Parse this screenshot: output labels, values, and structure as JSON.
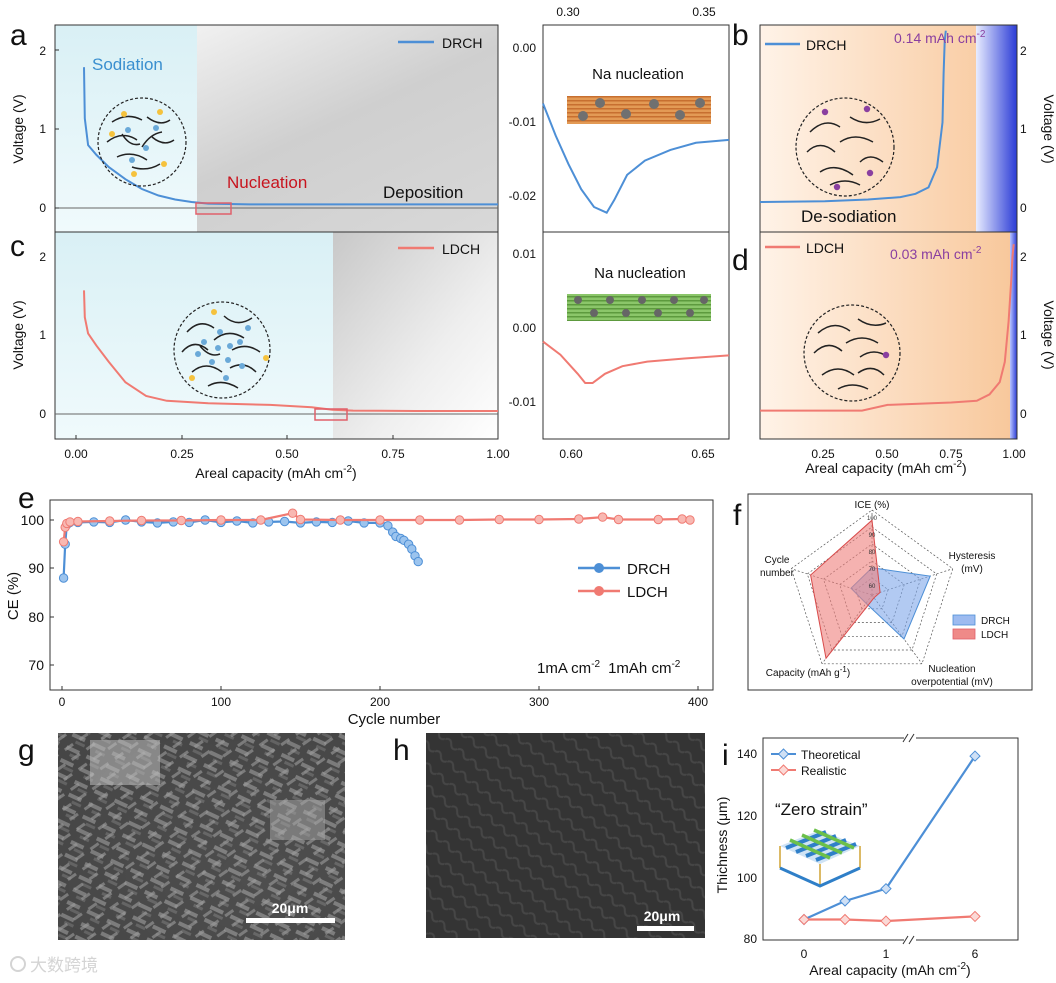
{
  "panels": {
    "a": {
      "letter": "a",
      "legend": "DRCH",
      "ylabel": "Voltage (V)",
      "yticks": [
        "0",
        "1",
        "2"
      ],
      "labels": {
        "sodiation": "Sodiation",
        "nucleation": "Nucleation",
        "deposition": "Deposition"
      }
    },
    "a_inset": {
      "top_ticks": [
        "0.30",
        "0.35"
      ],
      "yticks": [
        "0.00",
        "-0.01",
        "-0.02"
      ],
      "label": "Na nucleation"
    },
    "b": {
      "letter": "b",
      "legend": "DRCH",
      "capacity": "0.14 mAh cm",
      "capacity_sup": "-2",
      "ylabel": "Voltage (V)",
      "yticks": [
        "0",
        "1",
        "2"
      ],
      "label": "De-sodiation"
    },
    "c": {
      "letter": "c",
      "legend": "LDCH",
      "ylabel": "Voltage (V)",
      "yticks": [
        "0",
        "1",
        "2"
      ],
      "xticks": [
        "0.00",
        "0.25",
        "0.50",
        "0.75",
        "1.00"
      ],
      "xlabel": "Areal capacity (mAh cm",
      "xlabel_sup": "-2",
      "xlabel_end": ")"
    },
    "c_inset": {
      "xticks": [
        "0.60",
        "0.65"
      ],
      "yticks": [
        "0.01",
        "0.00",
        "-0.01"
      ],
      "label": "Na nucleation"
    },
    "d": {
      "letter": "d",
      "legend": "LDCH",
      "capacity": "0.03 mAh cm",
      "capacity_sup": "-2",
      "ylabel": "Voltage (V)",
      "yticks": [
        "0",
        "1",
        "2"
      ],
      "xticks": [
        "0.25",
        "0.50",
        "0.75",
        "1.00"
      ],
      "xlabel": "Areal capacity (mAh cm",
      "xlabel_sup": "-2",
      "xlabel_end": ")"
    },
    "e": {
      "letter": "e",
      "ylabel": "CE (%)",
      "yticks": [
        "70",
        "80",
        "90",
        "100"
      ],
      "xticks": [
        "0",
        "100",
        "200",
        "300",
        "400"
      ],
      "xlabel": "Cycle number",
      "legend": [
        "DRCH",
        "LDCH"
      ],
      "condition_1": "1mA cm",
      "condition_1_sup": "-2",
      "condition_2": "1mAh cm",
      "condition_2_sup": "-2"
    },
    "f": {
      "letter": "f",
      "axes": {
        "ice": "ICE (%)",
        "hysteresis_1": "Hysteresis",
        "hysteresis_2": "(mV)",
        "nucleation_1": "Nucleation",
        "nucleation_2": "overpotential (mV)",
        "capacity": "Capacity (mAh g",
        "capacity_sup": "-1",
        "capacity_end": ")",
        "cycle_1": "Cycle",
        "cycle_2": "number"
      },
      "ring_labels": [
        "100",
        "90",
        "80",
        "70",
        "60"
      ],
      "legend": [
        "DRCH",
        "LDCH"
      ]
    },
    "g": {
      "letter": "g",
      "scalebar": "20μm"
    },
    "h": {
      "letter": "h",
      "scalebar": "20μm"
    },
    "i": {
      "letter": "i",
      "legend": [
        "Theoretical",
        "Realistic"
      ],
      "ylabel": "Thichness (μm)",
      "yticks": [
        "80",
        "100",
        "120",
        "140"
      ],
      "xticks": [
        "0",
        "1",
        "6"
      ],
      "xlabel": "Areal capacity (mAh cm",
      "xlabel_sup": "-2",
      "xlabel_end": ")",
      "annotation": "“Zero strain”"
    }
  },
  "watermark": "大数跨境",
  "colors": {
    "drch": "#4d8fd6",
    "ldch": "#f07a72",
    "annotation_red": "#c8141e",
    "capacity_purple": "#8a3fa0",
    "sodiation_blue": "#3a8fcf"
  },
  "chart_data": [
    {
      "panel": "a",
      "type": "line",
      "series_name": "DRCH",
      "xlim": [
        -0.07,
        1.0
      ],
      "ylim": [
        -0.35,
        2.2
      ],
      "x": [
        0.0,
        0.002,
        0.01,
        0.03,
        0.06,
        0.1,
        0.14,
        0.18,
        0.22,
        0.26,
        0.3,
        0.4,
        0.6,
        0.8,
        1.0
      ],
      "y": [
        1.68,
        1.05,
        0.72,
        0.6,
        0.45,
        0.3,
        0.18,
        0.1,
        0.05,
        0.02,
        0.0,
        -0.01,
        -0.01,
        -0.01,
        -0.01
      ]
    },
    {
      "panel": "a_inset",
      "type": "line",
      "series_name": "DRCH",
      "xlim": [
        0.285,
        0.358
      ],
      "ylim": [
        -0.0255,
        0.0035
      ],
      "x": [
        0.285,
        0.29,
        0.295,
        0.3,
        0.305,
        0.31,
        0.313,
        0.318,
        0.325,
        0.335,
        0.345,
        0.358
      ],
      "y": [
        -0.0075,
        -0.012,
        -0.016,
        -0.0195,
        -0.022,
        -0.0228,
        -0.021,
        -0.0175,
        -0.0155,
        -0.014,
        -0.013,
        -0.0126
      ]
    },
    {
      "panel": "b",
      "type": "line",
      "series_name": "DRCH",
      "xlim": [
        0.0,
        1.0
      ],
      "ylim": [
        -0.35,
        2.2
      ],
      "x": [
        0.0,
        0.3,
        0.5,
        0.65,
        0.72,
        0.78,
        0.82,
        0.845,
        0.85,
        0.855,
        0.86
      ],
      "y": [
        0.02,
        0.03,
        0.05,
        0.08,
        0.12,
        0.2,
        0.45,
        1.0,
        1.6,
        2.0,
        2.13
      ]
    },
    {
      "panel": "c",
      "type": "line",
      "series_name": "LDCH",
      "xlim": [
        -0.07,
        1.0
      ],
      "ylim": [
        -0.35,
        2.2
      ],
      "x": [
        0.0,
        0.002,
        0.01,
        0.03,
        0.06,
        0.1,
        0.15,
        0.2,
        0.3,
        0.45,
        0.55,
        0.6,
        0.65,
        0.8,
        1.0
      ],
      "y": [
        1.48,
        1.15,
        0.95,
        0.8,
        0.6,
        0.35,
        0.18,
        0.12,
        0.09,
        0.07,
        0.04,
        0.01,
        0.0,
        -0.005,
        -0.005
      ]
    },
    {
      "panel": "c_inset",
      "type": "line",
      "series_name": "LDCH",
      "xlim": [
        0.583,
        0.658
      ],
      "ylim": [
        -0.0145,
        0.0125
      ],
      "x": [
        0.583,
        0.59,
        0.597,
        0.6,
        0.603,
        0.608,
        0.615,
        0.625,
        0.64,
        0.658
      ],
      "y": [
        -0.0018,
        -0.0035,
        -0.006,
        -0.0072,
        -0.0072,
        -0.006,
        -0.005,
        -0.0044,
        -0.004,
        -0.0036
      ]
    },
    {
      "panel": "d",
      "type": "line",
      "series_name": "LDCH",
      "xlim": [
        0.0,
        1.0
      ],
      "ylim": [
        -0.35,
        2.2
      ],
      "x": [
        0.0,
        0.2,
        0.4,
        0.5,
        0.75,
        0.85,
        0.9,
        0.94,
        0.96,
        0.975,
        0.985,
        0.99,
        0.995
      ],
      "y": [
        0.0,
        0.0,
        0.0,
        0.07,
        0.1,
        0.12,
        0.2,
        0.35,
        0.6,
        1.1,
        1.6,
        1.9,
        2.05
      ]
    },
    {
      "panel": "e",
      "type": "scatter",
      "xlim": [
        -10,
        405
      ],
      "ylim": [
        65,
        103
      ],
      "series": [
        {
          "name": "DRCH",
          "x": [
            1,
            2,
            3,
            5,
            10,
            20,
            30,
            40,
            50,
            60,
            70,
            80,
            90,
            100,
            110,
            120,
            130,
            140,
            150,
            160,
            170,
            180,
            190,
            200,
            205,
            208,
            210,
            213,
            215,
            218,
            220,
            222,
            224
          ],
          "y": [
            88,
            95,
            99,
            99.5,
            99.5,
            99.6,
            99.5,
            100.0,
            99.6,
            99.4,
            99.6,
            99.5,
            100.0,
            99.5,
            99.8,
            99.4,
            99.6,
            99.7,
            99.4,
            99.6,
            99.5,
            99.8,
            99.4,
            99.4,
            98.8,
            97.5,
            96.6,
            96.2,
            95.8,
            95.0,
            94.0,
            92.6,
            91.4
          ]
        },
        {
          "name": "LDCH",
          "x": [
            1,
            2,
            3,
            5,
            10,
            30,
            50,
            75,
            100,
            125,
            145,
            150,
            175,
            200,
            225,
            250,
            275,
            300,
            325,
            340,
            350,
            375,
            390,
            395
          ],
          "y": [
            95.5,
            98.5,
            99.3,
            99.6,
            99.7,
            99.8,
            99.9,
            99.9,
            100.0,
            100.0,
            101.4,
            100.1,
            100.0,
            100.0,
            100.0,
            100.0,
            100.1,
            100.1,
            100.2,
            100.6,
            100.1,
            100.1,
            100.2,
            100.0
          ]
        }
      ]
    },
    {
      "panel": "f",
      "type": "radar",
      "axes": [
        "ICE (%)",
        "Hysteresis (mV)",
        "Nucleation overpotential (mV)",
        "Capacity (mAh g-1)",
        "Cycle number"
      ],
      "rlim": [
        50,
        100
      ],
      "series": [
        {
          "name": "DRCH",
          "values": [
            66,
            86,
            82,
            56,
            63
          ]
        },
        {
          "name": "LDCH",
          "values": [
            94,
            55,
            52,
            96,
            88
          ]
        }
      ]
    },
    {
      "panel": "i",
      "type": "line",
      "ylim": [
        80,
        143
      ],
      "series": [
        {
          "name": "Theoretical",
          "x": [
            0,
            0.5,
            1,
            6
          ],
          "y": [
            86,
            92,
            96,
            139
          ]
        },
        {
          "name": "Realistic",
          "x": [
            0,
            0.5,
            1,
            6
          ],
          "y": [
            86,
            86,
            85.5,
            87
          ]
        }
      ]
    }
  ]
}
